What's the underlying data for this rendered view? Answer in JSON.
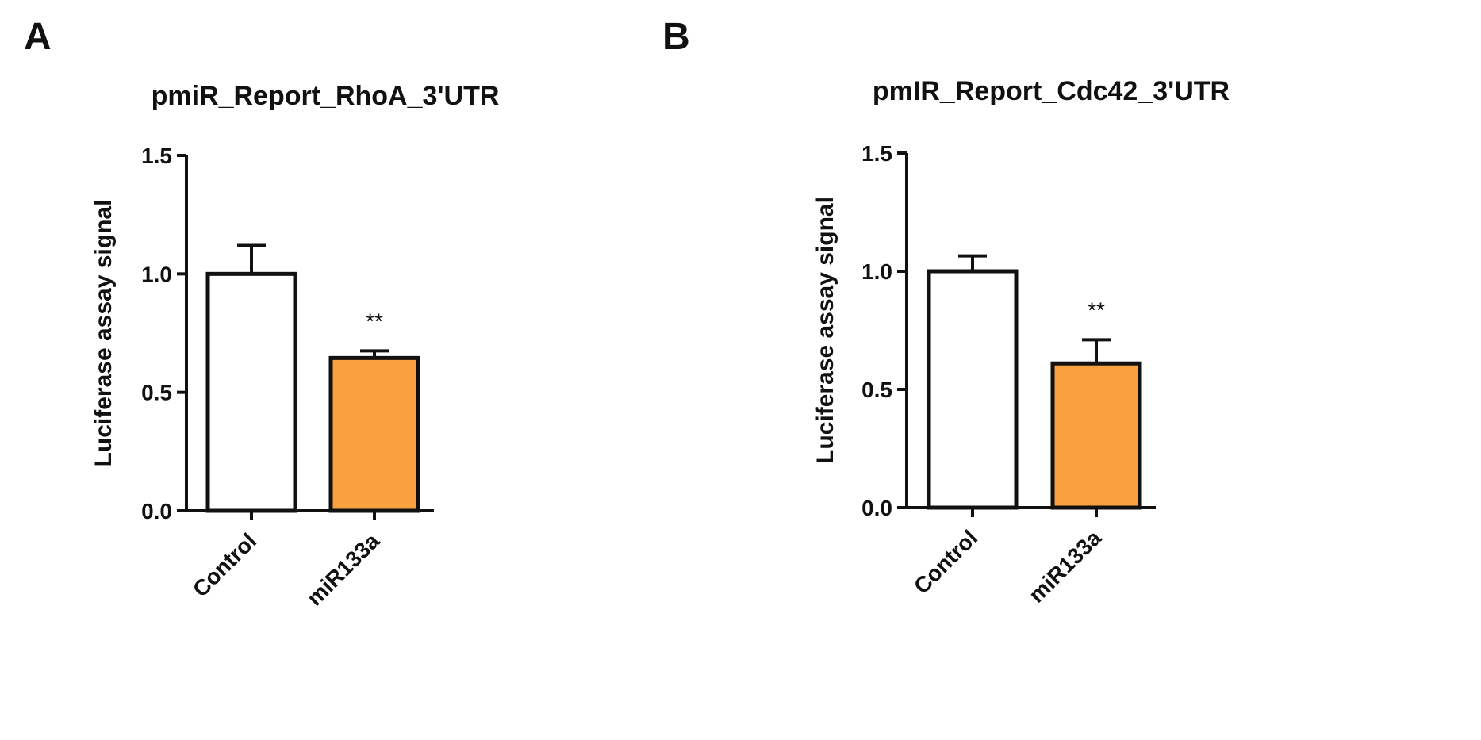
{
  "chart_data": [
    {
      "type": "bar",
      "panel_label": "A",
      "title": "pmiR_Report_RhoA_3'UTR",
      "y_label": "Luciferase assay signal",
      "categories": [
        "Control",
        "miR133a"
      ],
      "values": [
        1.0,
        0.645
      ],
      "errors": [
        0.12,
        0.03
      ],
      "colors": [
        "#ffffff",
        "#f9a040"
      ],
      "significance": [
        null,
        "**"
      ],
      "ylim": [
        0,
        1.5
      ],
      "yticks": [
        {
          "value": 0,
          "label": "0.0"
        },
        0.5,
        {
          "value": 1,
          "label": "1.0"
        },
        1.5
      ]
    },
    {
      "type": "bar",
      "panel_label": "B",
      "title": "pmIR_Report_Cdc42_3'UTR",
      "y_label": "Luciferase assay signal",
      "categories": [
        "Control",
        "miR133a"
      ],
      "values": [
        1.0,
        0.61
      ],
      "errors": [
        0.065,
        0.1
      ],
      "colors": [
        "#ffffff",
        "#f9a040"
      ],
      "significance": [
        null,
        "**"
      ],
      "ylim": [
        0,
        1.5
      ],
      "yticks": [
        {
          "value": 0,
          "label": "0.0"
        },
        0.5,
        {
          "value": 1,
          "label": "1.0"
        },
        1.5
      ]
    }
  ]
}
